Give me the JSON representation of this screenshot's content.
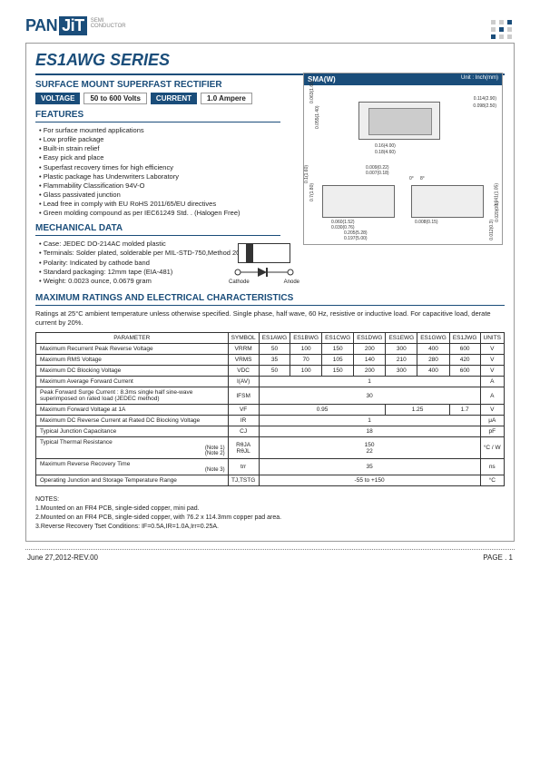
{
  "header": {
    "logo_pan": "PAN",
    "logo_jit": "JiT",
    "logo_sub1": "SEMI",
    "logo_sub2": "CONDUCTOR"
  },
  "title": "ES1AWG SERIES",
  "subtitle": "SURFACE MOUNT SUPERFAST RECTIFIER",
  "badges": {
    "voltage_label": "VOLTAGE",
    "voltage_value": "50 to 600 Volts",
    "current_label": "CURRENT",
    "current_value": "1.0 Ampere"
  },
  "features_title": "FEATURES",
  "features": [
    "For surface mounted applications",
    "Low profile package",
    "Built-in strain relief",
    "Easy pick and place",
    "Superfast recovery times for high efficiency",
    "Plastic package has Underwriters Laboratory",
    "  Flammability Classification 94V-O",
    "Glass passivated junction",
    "Lead free in comply with EU RoHS 2011/65/EU directives",
    "Green molding compound as per IEC61249 Std. . (Halogen Free)"
  ],
  "mechanical_title": "MECHANICAL DATA",
  "mechanical": [
    "Case: JEDEC DO-214AC molded plastic",
    "Terminals: Solder plated, solderable per MIL-STD-750,Method 2026",
    "Polarity: Indicated by cathode band",
    "Standard packaging: 12mm tape (EIA-481)",
    "Weight: 0.0023 ounce, 0.0679 gram"
  ],
  "package": {
    "title": "SMA(W)",
    "unit": "Unit : Inch(mm)",
    "dims": {
      "d1": "0.114(2.90)",
      "d2": "0.098(2.50)",
      "d3": "0.16(4.00)",
      "d4": "0.18(4.60)",
      "d5": "0.063(1.60)",
      "d6": "0.055(1.40)",
      "d7": "0.009(0.22)",
      "d8": "0.007(0.18)",
      "d9": "0.1(1.60)",
      "d10": "0.7(1.80)",
      "d11": "0.060(1.52)",
      "d12": "0.030(0.76)",
      "d13": "0.205(5.28)",
      "d14": "0.197(5.00)",
      "d15": "0.008(0.15)",
      "d16": "0.020(0.5)",
      "d17": "0.012(0.3)",
      "d18": "0.041(1.05)",
      "d19": "8°",
      "d20": "0°"
    }
  },
  "diode": {
    "cathode": "Cathode",
    "anode": "Anode"
  },
  "ratings_title": "MAXIMUM RATINGS AND ELECTRICAL CHARACTERISTICS",
  "ratings_note": "Ratings at 25°C ambient temperature unless otherwise specified. Single phase, half wave, 60 Hz, resistive or inductive load. For capacitive load, derate current by 20%.",
  "table": {
    "headers": [
      "PARAMETER",
      "SYMBOL",
      "ES1AWG",
      "ES1BWG",
      "ES1CWG",
      "ES1DWG",
      "ES1EWG",
      "ES1GWG",
      "ES1JWG",
      "UNITS"
    ],
    "rows": [
      {
        "param": "Maximum Recurrent Peak Reverse Voltage",
        "sym": "VRRM",
        "vals": [
          "50",
          "100",
          "150",
          "200",
          "300",
          "400",
          "600"
        ],
        "unit": "V"
      },
      {
        "param": "Maximum RMS Voltage",
        "sym": "VRMS",
        "vals": [
          "35",
          "70",
          "105",
          "140",
          "210",
          "280",
          "420"
        ],
        "unit": "V"
      },
      {
        "param": "Maximum DC Blocking Voltage",
        "sym": "VDC",
        "vals": [
          "50",
          "100",
          "150",
          "200",
          "300",
          "400",
          "600"
        ],
        "unit": "V"
      },
      {
        "param": "Maximum Average Forward Current",
        "sym": "I(AV)",
        "span": "1",
        "unit": "A"
      },
      {
        "param": "Peak Forward Surge Current : 8.3ms single half sine-wave superimposed on rated load (JEDEC method)",
        "sym": "IFSM",
        "span": "30",
        "unit": "A"
      },
      {
        "param": "Maximum Forward Voltage at 1A",
        "sym": "VF",
        "groups": [
          {
            "span": 4,
            "val": "0.95"
          },
          {
            "span": 2,
            "val": "1.25"
          },
          {
            "span": 1,
            "val": "1.7"
          }
        ],
        "unit": "V"
      },
      {
        "param": "Maximum DC Reverse Current at Rated DC Blocking Voltage",
        "sym": "IR",
        "span": "1",
        "unit": "μA"
      },
      {
        "param": "Typical Junction Capacitance",
        "sym": "CJ",
        "span": "18",
        "unit": "pF"
      },
      {
        "param": "Typical Thermal Resistance",
        "note": "(Note 1)\n(Note 2)",
        "sym": "RθJA\nRθJL",
        "span": "150\n22",
        "unit": "°C / W"
      },
      {
        "param": "Maximum Reverse Recovery Time",
        "note": "(Note 3)",
        "sym": "trr",
        "span": "35",
        "unit": "ns"
      },
      {
        "param": "Operating Junction and Storage Temperature Range",
        "sym": "TJ,TSTG",
        "span": "-55 to +150",
        "unit": "°C"
      }
    ]
  },
  "notes_title": "NOTES:",
  "notes": [
    "1.Mounted on an FR4 PCB, single-sided copper, mini pad.",
    "2.Mounted on an FR4 PCB, single-sided copper, with 76.2 x 114.3mm copper pad area.",
    "3.Reverse Recovery Tset Conditions: IF=0.5A,IR=1.0A,Irr=0.25A."
  ],
  "footer": {
    "date": "June 27,2012-REV.00",
    "page": "PAGE  .  1"
  }
}
